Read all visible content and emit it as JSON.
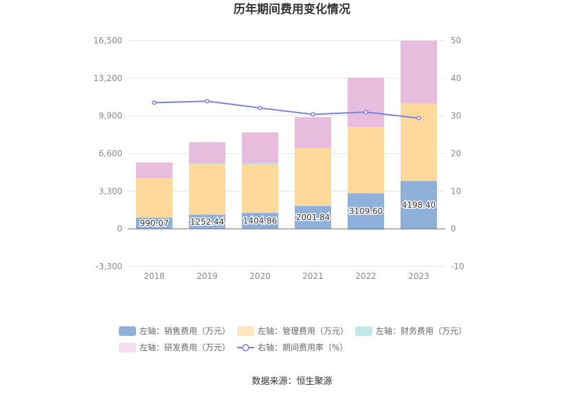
{
  "chart_data": {
    "type": "bar",
    "title": "历年期间费用变化情况",
    "categories": [
      "2018",
      "2019",
      "2020",
      "2021",
      "2022",
      "2023"
    ],
    "stacked": true,
    "series": [
      {
        "name": "左轴：销售费用（万元）",
        "axis": "left",
        "type": "bar",
        "color": "#8eb0db",
        "labels": [
          "990.07",
          "1252.44",
          "1404.86",
          "2001.84",
          "3109.60",
          "4198.40"
        ],
        "values": [
          990.07,
          1252.44,
          1404.86,
          2001.84,
          3109.6,
          4198.4
        ]
      },
      {
        "name": "左轴：管理费用（万元）",
        "axis": "left",
        "type": "bar",
        "color": "#ffd99b",
        "legend_color": "#ffe6c1",
        "values": [
          3450,
          4450,
          4200,
          5050,
          5800,
          6800
        ]
      },
      {
        "name": "左轴：财务费用（万元）",
        "axis": "left",
        "type": "bar",
        "color": "#b8e6e6",
        "legend_color": "#c0e9e9",
        "values": [
          20,
          30,
          150,
          40,
          -100,
          -50
        ]
      },
      {
        "name": "左轴：研发费用（万元）",
        "axis": "left",
        "type": "bar",
        "color": "#e8bcdc",
        "legend_color": "#f3dcee",
        "values": [
          1360,
          1870,
          2700,
          2700,
          4350,
          5500
        ]
      },
      {
        "name": "右轴：期间费用率（%）",
        "axis": "right",
        "type": "line",
        "color": "#7a80e8",
        "values": [
          33.5,
          33.9,
          32.1,
          30.4,
          31.0,
          29.4
        ]
      }
    ],
    "y_left": {
      "ticks": [
        "16,500",
        "13,200",
        "9,900",
        "6,600",
        "3,300",
        "0",
        "-3,300"
      ],
      "range": [
        -3300,
        16500
      ]
    },
    "y_right": {
      "ticks": [
        "50",
        "40",
        "30",
        "20",
        "10",
        "0",
        "-10"
      ],
      "range": [
        -10,
        50
      ]
    },
    "grid": true,
    "legend_position": "bottom"
  },
  "footer": {
    "source": "数据来源：恒生聚源"
  }
}
